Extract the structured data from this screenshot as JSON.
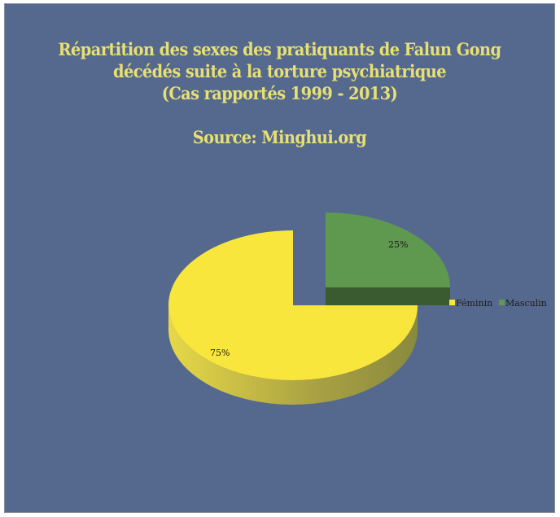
{
  "chart_data": {
    "type": "pie",
    "style": "3d-exploded",
    "title_lines": [
      "Répartition des sexes des pratiquants de Falun Gong",
      "décédés suite à la torture psychiatrique",
      "(Cas rapportés 1999 - 2013)"
    ],
    "subtitle": "Source: Minghui.org",
    "categories": [
      "Féminin",
      "Masculin"
    ],
    "values": [
      75,
      25
    ],
    "data_labels": [
      "75%",
      "25%"
    ],
    "colors": [
      "#f9e63c",
      "#5f9950"
    ],
    "legend_placement": "right",
    "background_color": "#55698f",
    "title_color": "#e8e070"
  }
}
